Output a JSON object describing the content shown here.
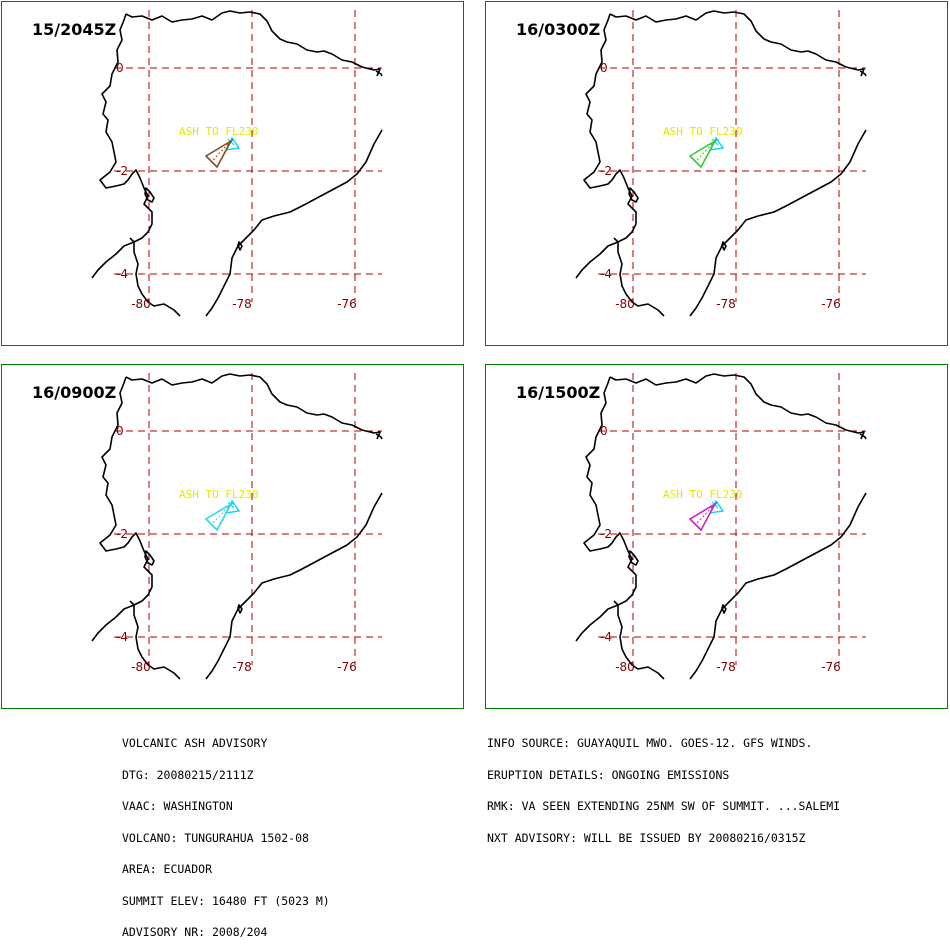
{
  "colors": {
    "panel_border": "#008000",
    "grid": "#b00000",
    "coast": "#000000",
    "ash_label": "#e6e600",
    "volcano_marker": "#00d8ff"
  },
  "ash_label": "ASH TO FL230",
  "lat_labels": [
    "0",
    "-2",
    "-4"
  ],
  "lon_labels": [
    "-80",
    "-78",
    "-76"
  ],
  "panels": [
    {
      "time": "15/2045Z",
      "plume_color": "#8b4a1e"
    },
    {
      "time": "16/0300Z",
      "plume_color": "#33cc33"
    },
    {
      "time": "16/0900Z",
      "plume_color": "#33d6e6"
    },
    {
      "time": "16/1500Z",
      "plume_color": "#cc22cc"
    }
  ],
  "advisory_left": [
    "VOLCANIC ASH ADVISORY",
    "DTG: 20080215/2111Z",
    "VAAC: WASHINGTON",
    "VOLCANO: TUNGURAHUA 1502-08",
    "AREA: ECUADOR",
    "SUMMIT ELEV: 16480 FT (5023 M)",
    "ADVISORY NR: 2008/204"
  ],
  "advisory_right": [
    "INFO SOURCE: GUAYAQUIL MWO. GOES-12. GFS WINDS.",
    "ERUPTION DETAILS: ONGOING EMISSIONS",
    "RMK: VA SEEN EXTENDING 25NM SW OF SUMMIT. ...SALEMI",
    "NXT ADVISORY: WILL BE ISSUED BY 20080216/0315Z"
  ]
}
